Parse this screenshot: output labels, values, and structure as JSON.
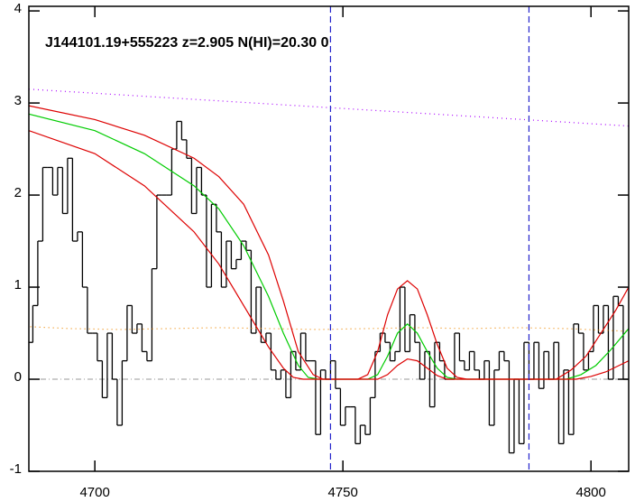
{
  "chart_data": {
    "type": "line",
    "title": "J144101.19+555223 z=2.905 N(HI)=20.30 0",
    "xlim": [
      4686.7,
      4807.6
    ],
    "ylim": [
      -1.0,
      4.05
    ],
    "xticks": [
      4700,
      4750,
      4800
    ],
    "yticks": [
      -1,
      0,
      1,
      2,
      3,
      4
    ],
    "vlines": [
      4747.5,
      4787.5
    ],
    "vline_color": "#2222cc",
    "hlines": [
      0
    ],
    "hline_color": "#999999",
    "series": [
      {
        "color": "#000000",
        "step": true,
        "x": [
          4687,
          4688,
          4689,
          4690,
          4691,
          4692,
          4693,
          4694,
          4695,
          4696,
          4697,
          4698,
          4699,
          4700,
          4701,
          4702,
          4703,
          4704,
          4705,
          4706,
          4707,
          4708,
          4709,
          4710,
          4711,
          4712,
          4713,
          4714,
          4715,
          4716,
          4717,
          4718,
          4719,
          4720,
          4721,
          4722,
          4723,
          4724,
          4725,
          4726,
          4727,
          4728,
          4729,
          4730,
          4731,
          4732,
          4733,
          4734,
          4735,
          4736,
          4737,
          4738,
          4739,
          4740,
          4741,
          4742,
          4743,
          4744,
          4745,
          4746,
          4747,
          4748,
          4749,
          4750,
          4751,
          4752,
          4753,
          4754,
          4755,
          4756,
          4757,
          4758,
          4759,
          4760,
          4761,
          4762,
          4763,
          4764,
          4765,
          4766,
          4767,
          4768,
          4769,
          4770,
          4771,
          4772,
          4773,
          4774,
          4775,
          4776,
          4777,
          4778,
          4779,
          4780,
          4781,
          4782,
          4783,
          4784,
          4785,
          4786,
          4787,
          4788,
          4789,
          4790,
          4791,
          4792,
          4793,
          4794,
          4795,
          4796,
          4797,
          4798,
          4799,
          4800,
          4801,
          4802,
          4803,
          4804,
          4805,
          4806,
          4807
        ],
        "values": [
          0.4,
          0.8,
          1.5,
          2.3,
          2.3,
          2.0,
          2.3,
          1.8,
          2.4,
          1.5,
          1.6,
          1.0,
          0.5,
          0.5,
          0.2,
          -0.2,
          0.5,
          0.0,
          -0.5,
          0.2,
          0.8,
          0.5,
          0.6,
          0.3,
          0.2,
          1.2,
          2.0,
          2.0,
          2.0,
          2.5,
          2.8,
          2.6,
          2.4,
          1.8,
          2.3,
          2.0,
          1.0,
          1.9,
          1.6,
          1.0,
          1.5,
          1.2,
          1.3,
          1.5,
          1.4,
          0.5,
          1.0,
          0.4,
          0.5,
          0.1,
          0.0,
          0.1,
          -0.2,
          0.3,
          0.1,
          0.5,
          0.2,
          0.2,
          -0.6,
          0.1,
          0.0,
          0.2,
          -0.1,
          -0.5,
          -0.3,
          -0.3,
          -0.7,
          -0.5,
          -0.6,
          -0.2,
          0.3,
          0.5,
          0.4,
          0.2,
          0.3,
          1.0,
          0.3,
          0.7,
          0.4,
          0.0,
          0.3,
          -0.3,
          0.4,
          0.2,
          0.0,
          0.0,
          0.5,
          0.2,
          0.1,
          0.3,
          0.1,
          0.0,
          0.2,
          -0.5,
          0.1,
          0.3,
          0.2,
          -0.8,
          0.0,
          -0.7,
          0.4,
          0.0,
          0.4,
          -0.1,
          0.3,
          0.0,
          0.4,
          -0.7,
          0.1,
          -0.6,
          0.6,
          0.5,
          0.1,
          0.3,
          0.8,
          0.5,
          0.8,
          0.0,
          0.9,
          0.8,
          0.0
        ]
      },
      {
        "color": "#ee8800",
        "dash": "1,4",
        "x": [
          4687,
          4695,
          4705,
          4715,
          4725,
          4735,
          4745,
          4755,
          4765,
          4775,
          4785,
          4795,
          4807.6
        ],
        "values": [
          0.57,
          0.55,
          0.54,
          0.55,
          0.56,
          0.55,
          0.54,
          0.55,
          0.56,
          0.55,
          0.56,
          0.55,
          0.52
        ]
      },
      {
        "color": "#aa00ff",
        "dash": "1,4",
        "x": [
          4686.7,
          4807.6
        ],
        "values": [
          3.15,
          2.75
        ]
      },
      {
        "color": "#00cc00",
        "x": [
          4686.7,
          4700,
          4710,
          4720,
          4725,
          4730,
          4735,
          4738,
          4741,
          4743,
          4745,
          4755,
          4757,
          4759,
          4761,
          4763,
          4765,
          4767,
          4769,
          4771,
          4773,
          4795,
          4798,
          4801,
          4804,
          4807.6
        ],
        "values": [
          2.88,
          2.7,
          2.45,
          2.1,
          1.85,
          1.45,
          0.9,
          0.5,
          0.15,
          0.02,
          0,
          0,
          0.05,
          0.25,
          0.5,
          0.6,
          0.5,
          0.3,
          0.12,
          0.02,
          0,
          0,
          0.05,
          0.15,
          0.32,
          0.55
        ]
      },
      {
        "color": "#dd0000",
        "x": [
          4686.7,
          4700,
          4710,
          4720,
          4725,
          4730,
          4735,
          4738,
          4741,
          4744,
          4746,
          4753,
          4755,
          4757,
          4759,
          4761,
          4763,
          4765,
          4767,
          4769,
          4771,
          4773,
          4775,
          4793,
          4796,
          4799,
          4802,
          4805,
          4807.6
        ],
        "values": [
          2.97,
          2.82,
          2.65,
          2.4,
          2.2,
          1.9,
          1.35,
          0.85,
          0.3,
          0.05,
          0,
          0,
          0.05,
          0.3,
          0.7,
          0.98,
          1.07,
          0.98,
          0.7,
          0.38,
          0.12,
          0.02,
          0,
          0,
          0.1,
          0.25,
          0.5,
          0.75,
          1.0
        ]
      },
      {
        "color": "#dd0000",
        "x": [
          4686.7,
          4700,
          4710,
          4720,
          4725,
          4730,
          4735,
          4738,
          4740,
          4742,
          4757,
          4759,
          4761,
          4763,
          4765,
          4767,
          4769,
          4771,
          4797,
          4800,
          4803,
          4807.6
        ],
        "values": [
          2.7,
          2.45,
          2.1,
          1.6,
          1.25,
          0.8,
          0.35,
          0.12,
          0.02,
          0,
          0,
          0.05,
          0.15,
          0.22,
          0.2,
          0.12,
          0.04,
          0,
          0,
          0.03,
          0.08,
          0.2
        ]
      }
    ]
  }
}
